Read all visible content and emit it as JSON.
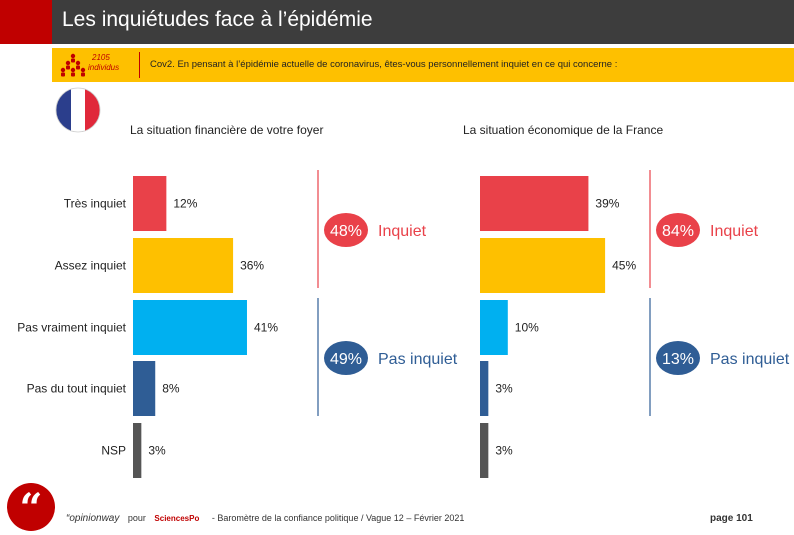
{
  "header": {
    "title": "Les inquiétudes face à l’épidémie"
  },
  "sample": {
    "count": "2105",
    "unit": "individus"
  },
  "question": "Cov2. En pensant à l’épidémie actuelle de coronavirus, êtes-vous personnellement inquiet en ce qui concerne :",
  "chart_data": {
    "type": "bar",
    "orientation": "horizontal",
    "categories": [
      "Très inquiet",
      "Assez inquiet",
      "Pas vraiment inquiet",
      "Pas du tout inquiet",
      "NSP"
    ],
    "colors": [
      "#e94149",
      "#fec000",
      "#00b0f0",
      "#2f5d95",
      "#555555"
    ],
    "series": [
      {
        "name": "La situation financière de votre foyer",
        "values": [
          12,
          36,
          41,
          8,
          3
        ],
        "labels": [
          "12%",
          "36%",
          "41%",
          "8%",
          "3%"
        ]
      },
      {
        "name": "La situation économique de la France",
        "values": [
          39,
          45,
          10,
          3,
          3
        ],
        "labels": [
          "39%",
          "45%",
          "10%",
          "3%",
          "3%"
        ]
      }
    ],
    "groups": [
      {
        "inquiet": {
          "value": "48%",
          "label": "Inquiet"
        },
        "pas_inquiet": {
          "value": "49%",
          "label": "Pas inquiet"
        }
      },
      {
        "inquiet": {
          "value": "84%",
          "label": "Inquiet"
        },
        "pas_inquiet": {
          "value": "13%",
          "label": "Pas inquiet"
        }
      }
    ],
    "group_colors": {
      "inquiet": "#e94149",
      "pas_inquiet": "#2f5d95"
    }
  },
  "footer": {
    "brand": "“opinionway",
    "pour": "pour",
    "partner": "SciencesPo",
    "text": "- Baromètre de la confiance politique / Vague 12 – Février 2021",
    "page": "page 101"
  }
}
